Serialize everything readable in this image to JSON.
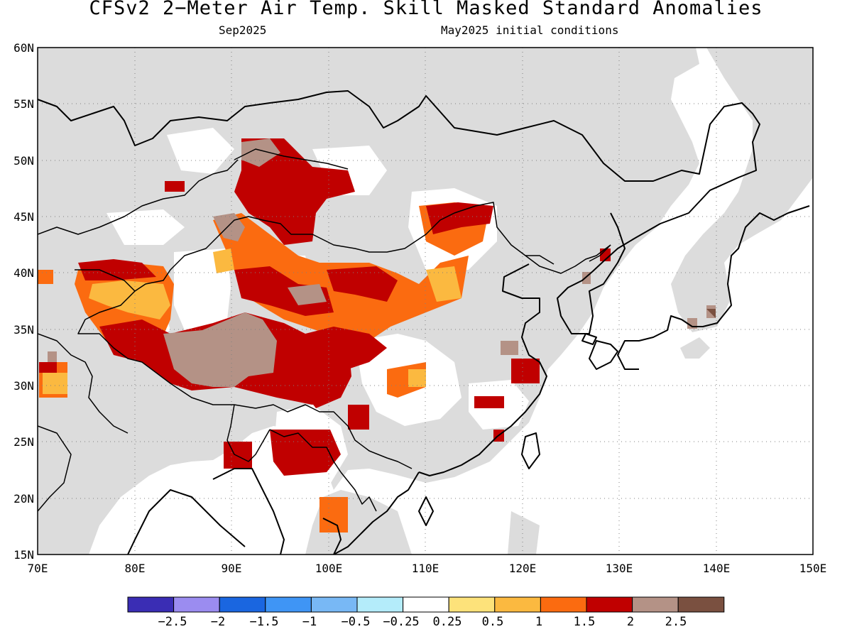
{
  "title": "CFSv2 2−Meter Air Temp. Skill Masked Standard Anomalies",
  "subtitle_left": "Sep2025",
  "subtitle_right": "May2025 initial conditions",
  "lat_labels": [
    "60N",
    "55N",
    "50N",
    "45N",
    "40N",
    "35N",
    "30N",
    "25N",
    "20N",
    "15N"
  ],
  "lon_labels": [
    "70E",
    "80E",
    "90E",
    "100E",
    "110E",
    "120E",
    "130E",
    "140E",
    "150E"
  ],
  "legend": {
    "colors": [
      "#3a2db4",
      "#9b8cf0",
      "#1a66e0",
      "#3f95f5",
      "#78b8f5",
      "#b4ecfa",
      "#ffffff",
      "#fde27a",
      "#fbb940",
      "#fb6b10",
      "#c00000",
      "#b49286",
      "#7a5040"
    ],
    "labels": [
      "−2.5",
      "−2",
      "−1.5",
      "−1",
      "−0.5",
      "−0.25",
      "0.25",
      "0.5",
      "1",
      "1.5",
      "2",
      "2.5"
    ]
  },
  "colors": {
    "masked": "#dcdcdc",
    "neutral": "#ffffff",
    "warm1": "#fde27a",
    "warm2": "#fbb940",
    "warm3": "#fb6b10",
    "warm4": "#c00000",
    "warm5": "#b49286",
    "warm6": "#7a5040"
  }
}
